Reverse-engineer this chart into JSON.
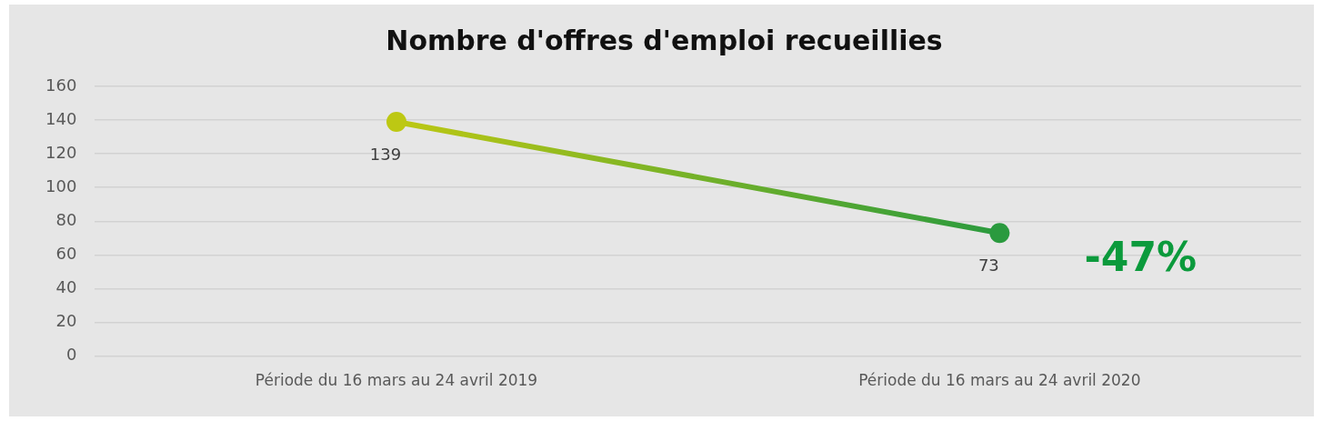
{
  "chart_data": {
    "type": "line",
    "title": "Nombre d'offres d'emploi recueillies",
    "categories": [
      "Période du 16 mars au 24 avril 2019",
      "Période du 16 mars au 24 avril 2020"
    ],
    "series": [
      {
        "colors": [
          "#bdc813",
          "#2a9a3e"
        ],
        "values": [
          139,
          73
        ]
      }
    ],
    "ylim": [
      0,
      160
    ],
    "yticks": [
      0,
      20,
      40,
      60,
      80,
      100,
      120,
      140,
      160
    ],
    "grid": "y",
    "legend": false,
    "marker": "circle",
    "line_style": "solid",
    "data_labels": true,
    "annotations": [
      "-47%"
    ]
  }
}
